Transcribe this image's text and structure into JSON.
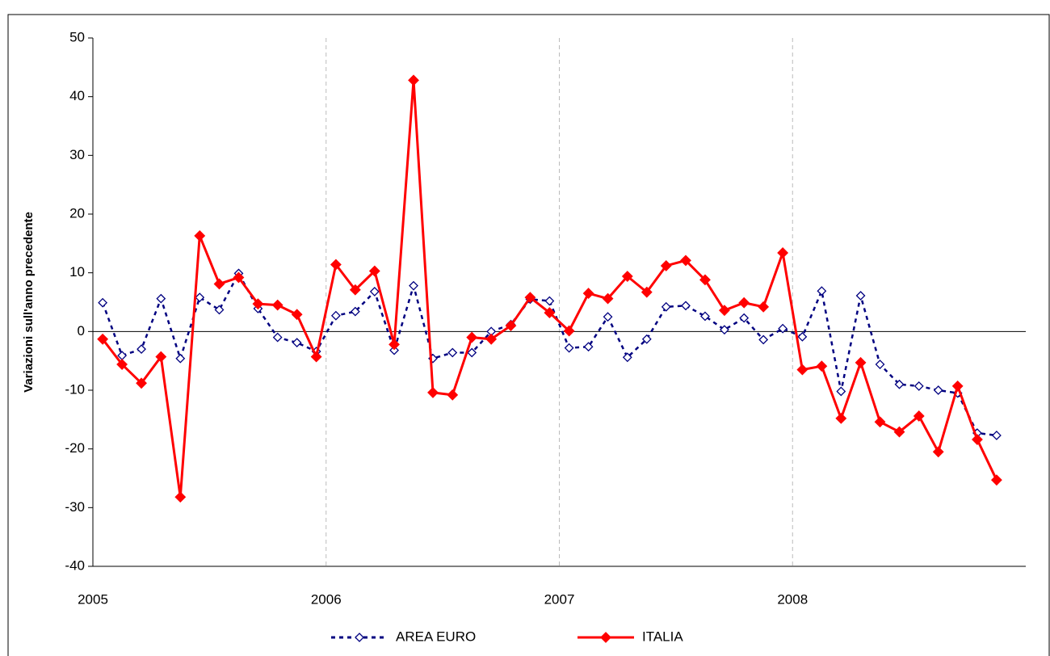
{
  "chart_data": {
    "type": "line",
    "ylabel": "Variazioni sull'anno precedente",
    "x": [
      2005.042,
      2005.125,
      2005.208,
      2005.292,
      2005.375,
      2005.458,
      2005.542,
      2005.625,
      2005.708,
      2005.792,
      2005.875,
      2005.958,
      2006.042,
      2006.125,
      2006.208,
      2006.292,
      2006.375,
      2006.458,
      2006.542,
      2006.625,
      2006.708,
      2006.792,
      2006.875,
      2006.958,
      2007.042,
      2007.125,
      2007.208,
      2007.292,
      2007.375,
      2007.458,
      2007.542,
      2007.625,
      2007.708,
      2007.792,
      2007.875,
      2007.958,
      2008.042,
      2008.125,
      2008.208,
      2008.292,
      2008.375,
      2008.458,
      2008.542,
      2008.625,
      2008.708,
      2008.792,
      2008.875
    ],
    "series": [
      {
        "name": "AREA EURO",
        "color": "#000080",
        "dashed": true,
        "marker": "hollow-diamond",
        "values": [
          4.9,
          -4.1,
          -3.0,
          5.6,
          -4.6,
          5.8,
          3.7,
          9.9,
          3.9,
          -1.0,
          -1.9,
          -3.4,
          2.7,
          3.4,
          6.8,
          -3.2,
          7.8,
          -4.6,
          -3.6,
          -3.6,
          0,
          1.2,
          5.5,
          5.2,
          -2.8,
          -2.6,
          2.5,
          -4.4,
          -1.3,
          4.2,
          4.4,
          2.6,
          0.3,
          2.3,
          -1.4,
          0.5,
          -0.9,
          6.9,
          -10.2,
          6.1,
          -5.6,
          -9.0,
          -9.3,
          -10.0,
          -10.5,
          -17.3,
          -17.7
        ]
      },
      {
        "name": "ITALIA",
        "color": "#ff0000",
        "dashed": false,
        "marker": "filled-diamond",
        "values": [
          -1.3,
          -5.6,
          -8.8,
          -4.3,
          -28.2,
          16.3,
          8.1,
          9.2,
          4.7,
          4.5,
          2.9,
          -4.3,
          11.4,
          7.1,
          10.3,
          -2.2,
          42.8,
          -10.4,
          -10.8,
          -1.0,
          -1.3,
          1.0,
          5.8,
          3.2,
          0.1,
          6.5,
          5.6,
          9.4,
          6.7,
          11.2,
          12.1,
          8.8,
          3.6,
          4.9,
          4.2,
          13.4,
          -6.5,
          -5.9,
          -14.8,
          -5.3,
          -15.4,
          -17.1,
          -14.4,
          -20.5,
          -9.3,
          -18.4,
          -25.3
        ]
      }
    ],
    "xlim": [
      2005,
      2009
    ],
    "xticks": [
      2005,
      2006,
      2007,
      2008
    ],
    "ylim": [
      -40,
      50
    ],
    "yticks": [
      -40,
      -30,
      -20,
      -10,
      0,
      10,
      20,
      30,
      40,
      50
    ],
    "xgrid": true,
    "legend": "bottom"
  }
}
